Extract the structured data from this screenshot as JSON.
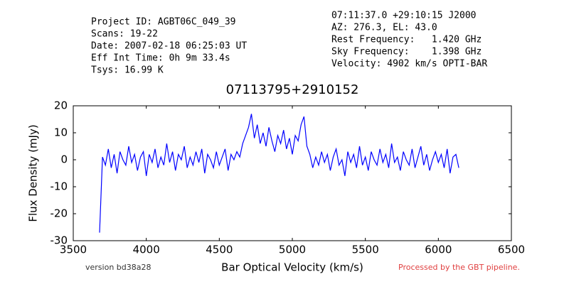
{
  "chart_data": {
    "type": "line",
    "header_left": [
      "Project ID: AGBT06C_049_39",
      "Scans: 19-22",
      "Date: 2007-02-18 06:25:03 UT",
      "Eff Int Time: 0h 9m 33.4s",
      "Tsys: 16.99 K"
    ],
    "header_right": [
      "07:11:37.0 +29:10:15 J2000",
      "AZ: 276.3, EL: 43.0",
      "Rest Frequency:   1.420 GHz",
      "Sky Frequency:    1.398 GHz",
      "Velocity: 4902 km/s OPTI-BAR"
    ],
    "title": "07113795+2910152",
    "xlabel": "Bar Optical Velocity (km/s)",
    "ylabel": "Flux Density (mJy)",
    "footer_left": "version bd38a28",
    "footer_right": "Processed by the GBT pipeline.",
    "xlim": [
      3500,
      6500
    ],
    "xticks": [
      3500,
      4000,
      4500,
      5000,
      5500,
      6000,
      6500
    ],
    "ylim": [
      -30,
      20
    ],
    "yticks": [
      -30,
      -20,
      -10,
      0,
      10,
      20
    ],
    "grid": false,
    "x": [
      3680,
      3700,
      3720,
      3740,
      3760,
      3780,
      3800,
      3820,
      3840,
      3860,
      3880,
      3900,
      3920,
      3940,
      3960,
      3980,
      4000,
      4020,
      4040,
      4060,
      4080,
      4100,
      4120,
      4140,
      4160,
      4180,
      4200,
      4220,
      4240,
      4260,
      4280,
      4300,
      4320,
      4340,
      4360,
      4380,
      4400,
      4420,
      4440,
      4460,
      4480,
      4500,
      4520,
      4540,
      4560,
      4580,
      4600,
      4620,
      4640,
      4660,
      4680,
      4700,
      4720,
      4740,
      4760,
      4780,
      4800,
      4820,
      4840,
      4860,
      4880,
      4900,
      4920,
      4940,
      4960,
      4980,
      5000,
      5020,
      5040,
      5060,
      5080,
      5100,
      5120,
      5140,
      5160,
      5180,
      5200,
      5220,
      5240,
      5260,
      5280,
      5300,
      5320,
      5340,
      5360,
      5380,
      5400,
      5420,
      5440,
      5460,
      5480,
      5500,
      5520,
      5540,
      5560,
      5580,
      5600,
      5620,
      5640,
      5660,
      5680,
      5700,
      5720,
      5740,
      5760,
      5780,
      5800,
      5820,
      5840,
      5860,
      5880,
      5900,
      5920,
      5940,
      5960,
      5980,
      6000,
      6020,
      6040,
      6060,
      6080,
      6100,
      6120,
      6140
    ],
    "series": [
      {
        "color": "#0000ff",
        "values": [
          -27,
          1,
          -2,
          4,
          -3,
          2,
          -5,
          3,
          0,
          -2,
          5,
          -1,
          2,
          -4,
          1,
          3,
          -6,
          2,
          -1,
          4,
          -3,
          1,
          -2,
          6,
          -1,
          3,
          -4,
          2,
          0,
          5,
          -3,
          1,
          -2,
          3,
          -1,
          4,
          -5,
          2,
          0,
          -3,
          3,
          -2,
          1,
          4,
          -4,
          2,
          0,
          3,
          1,
          6,
          9,
          12,
          17,
          8,
          13,
          6,
          10,
          5,
          12,
          7,
          3,
          9,
          6,
          11,
          4,
          8,
          2,
          9,
          7,
          13,
          16,
          5,
          2,
          -3,
          1,
          -2,
          3,
          -1,
          2,
          -4,
          1,
          4,
          -2,
          0,
          -6,
          3,
          -1,
          2,
          -3,
          5,
          -2,
          1,
          -4,
          3,
          0,
          -2,
          4,
          -1,
          2,
          -3,
          6,
          -1,
          1,
          -4,
          3,
          0,
          -2,
          4,
          -3,
          1,
          5,
          -2,
          2,
          -4,
          0,
          3,
          -1,
          2,
          -3,
          4,
          -5,
          1,
          2,
          -3
        ]
      }
    ]
  }
}
